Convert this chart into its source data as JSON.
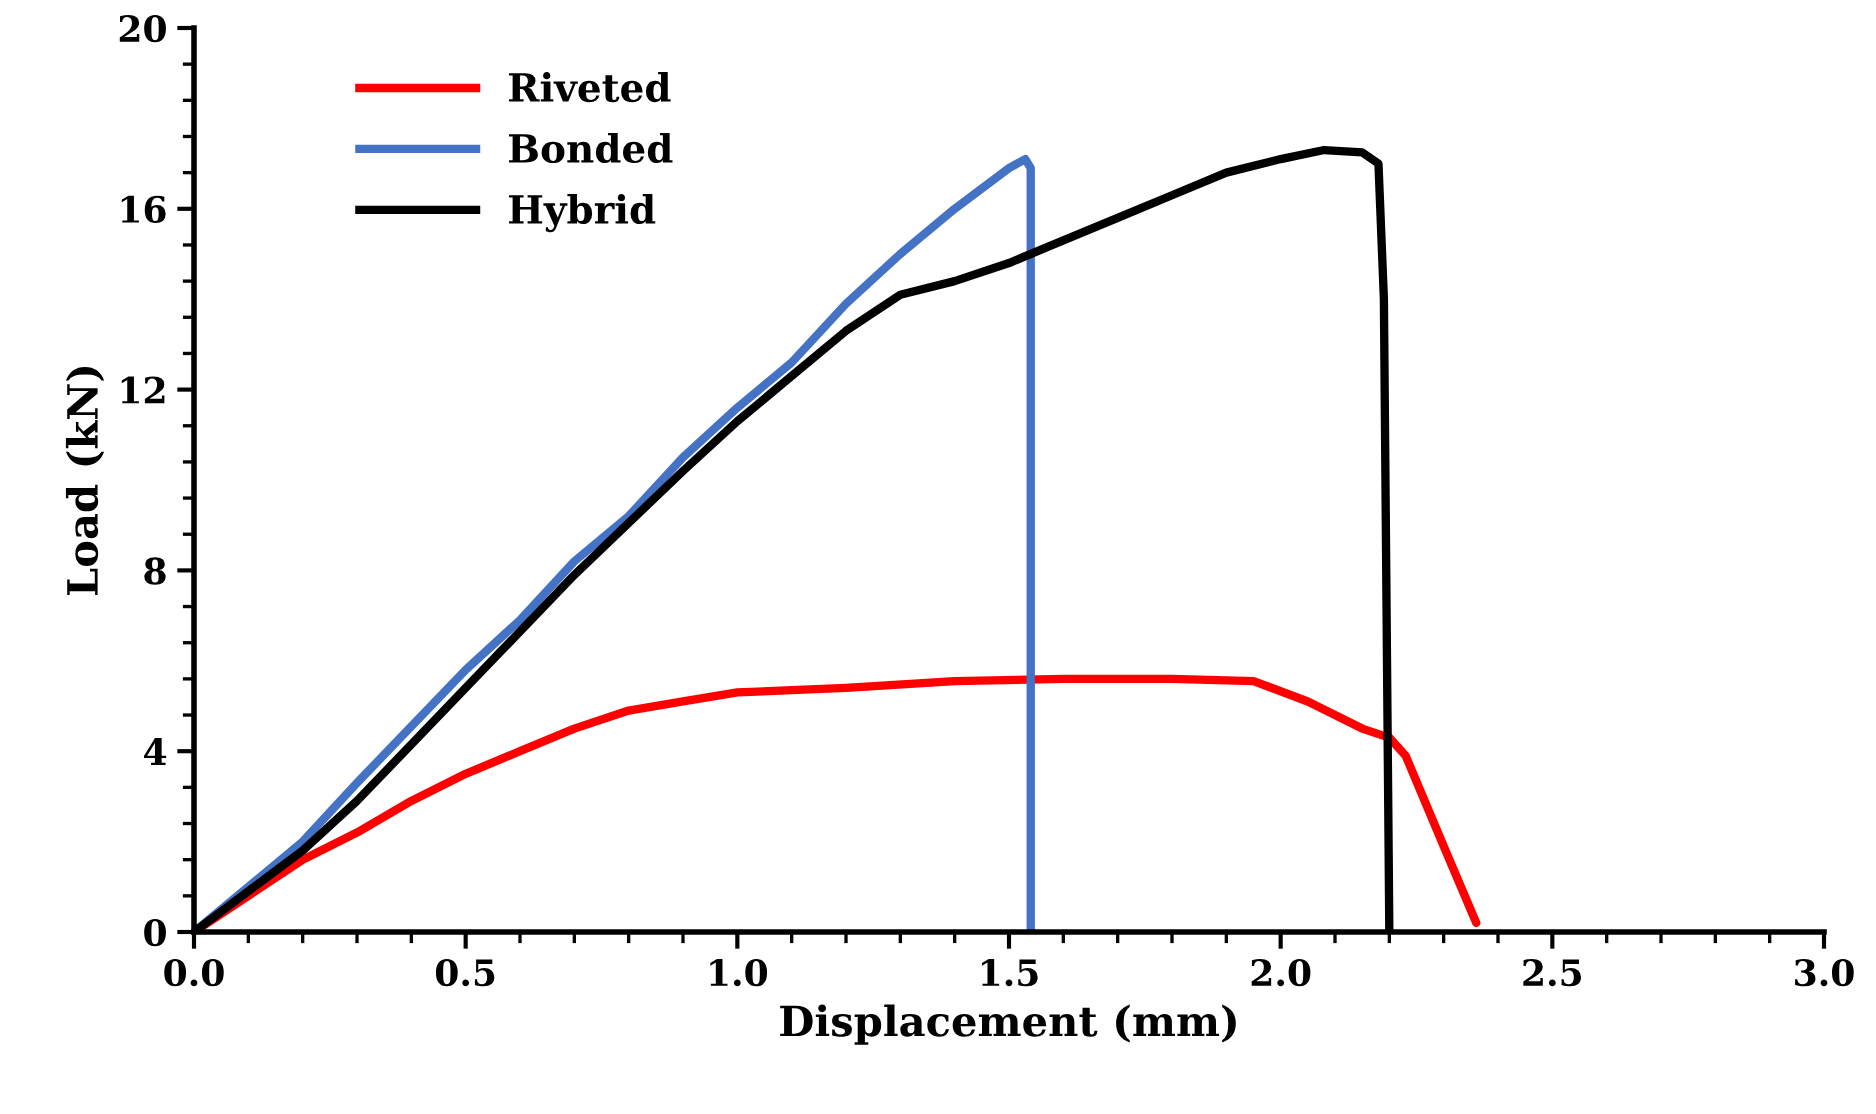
{
  "chart_data": {
    "type": "line",
    "xlabel": "Displacement (mm)",
    "ylabel": "Load (kN)",
    "xlim": [
      0,
      3.0
    ],
    "xticks": [
      {
        "value": 0,
        "label": "0.0"
      },
      0.5,
      {
        "value": 1,
        "label": "1.0"
      },
      1.5,
      {
        "value": 2,
        "label": "2.0"
      },
      2.5,
      {
        "value": 3,
        "label": "3.0"
      }
    ],
    "ylim": [
      0,
      20
    ],
    "yticks": [
      0,
      4,
      8,
      12,
      16,
      20
    ],
    "grid": false,
    "legend": "top left",
    "marker": "none",
    "line_style": "solid",
    "series": [
      {
        "name": "Riveted",
        "color": "#ff0000",
        "x": [
          0,
          0.2,
          0.3,
          0.4,
          0.5,
          0.6,
          0.7,
          0.8,
          0.9,
          1.0,
          1.2,
          1.4,
          1.6,
          1.8,
          1.95,
          2.05,
          2.15,
          2.2,
          2.23,
          2.3,
          2.36
        ],
        "values": [
          0,
          1.6,
          2.2,
          2.9,
          3.5,
          4.0,
          4.5,
          4.9,
          5.1,
          5.3,
          5.4,
          5.55,
          5.6,
          5.6,
          5.55,
          5.1,
          4.5,
          4.3,
          3.9,
          1.9,
          0.2
        ]
      },
      {
        "name": "Bonded",
        "color": "#4472c4",
        "x": [
          0,
          0.2,
          0.3,
          0.5,
          0.6,
          0.7,
          0.8,
          0.9,
          1.0,
          1.1,
          1.2,
          1.3,
          1.4,
          1.5,
          1.53,
          1.54,
          1.54
        ],
        "values": [
          0,
          2.0,
          3.3,
          5.8,
          6.9,
          8.2,
          9.2,
          10.5,
          11.6,
          12.6,
          13.9,
          15.0,
          16.0,
          16.9,
          17.1,
          16.9,
          0
        ]
      },
      {
        "name": "Hybrid",
        "color": "#000000",
        "x": [
          0,
          0.2,
          0.3,
          0.5,
          0.7,
          0.9,
          1.0,
          1.1,
          1.2,
          1.3,
          1.4,
          1.5,
          1.6,
          1.7,
          1.8,
          1.9,
          2.0,
          2.08,
          2.15,
          2.18,
          2.19,
          2.2
        ],
        "values": [
          0,
          1.8,
          2.9,
          5.4,
          7.9,
          10.2,
          11.3,
          12.3,
          13.3,
          14.1,
          14.4,
          14.8,
          15.3,
          15.8,
          16.3,
          16.8,
          17.1,
          17.3,
          17.25,
          17.0,
          14,
          0
        ]
      }
    ]
  }
}
